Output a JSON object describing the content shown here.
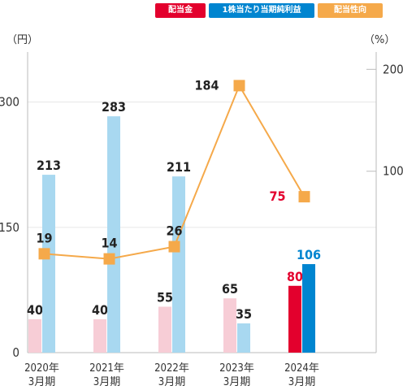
{
  "chart_data": {
    "type": "bar",
    "categories": [
      "2020年\n3月期",
      "2021年\n3月期",
      "2022年\n3月期",
      "2023年\n3月期",
      "2024年\n3月期"
    ],
    "series": [
      {
        "name": "配当金",
        "axis": "left",
        "kind": "bar",
        "values": [
          40,
          40,
          55,
          65,
          80
        ],
        "color": "#f7cdd6",
        "highlight_color": "#e3002d"
      },
      {
        "name": "1株当たり当期純利益",
        "axis": "left",
        "kind": "bar",
        "values": [
          213,
          283,
          211,
          35,
          106
        ],
        "color": "#a8d8f0",
        "highlight_color": "#0085d0"
      },
      {
        "name": "配当性向",
        "axis": "right",
        "kind": "line",
        "values": [
          19,
          14,
          26,
          184,
          75
        ],
        "color": "#f5a94a"
      }
    ],
    "highlight_index": 4,
    "y_left": {
      "unit": "（円）",
      "ticks": [
        0,
        150,
        300
      ],
      "range": [
        0,
        360
      ]
    },
    "y_right": {
      "unit": "（%）",
      "ticks": [
        100,
        200
      ],
      "range": [
        -78,
        217
      ]
    },
    "legend_position": "top-right",
    "colors": {
      "highlight_label": "#e3002d",
      "label": "#222222",
      "axis": "#bbbbbb"
    }
  },
  "legend": [
    {
      "label": "配当金",
      "color": "#e3002d"
    },
    {
      "label": "1株当たり当期純利益",
      "color": "#0085d0"
    },
    {
      "label": "配当性向",
      "color": "#f5a94a"
    }
  ]
}
